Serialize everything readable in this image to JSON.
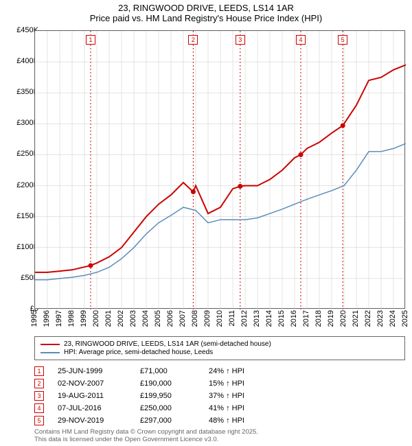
{
  "title": {
    "main": "23, RINGWOOD DRIVE, LEEDS, LS14 1AR",
    "sub": "Price paid vs. HM Land Registry's House Price Index (HPI)"
  },
  "chart": {
    "type": "line",
    "background_color": "#ffffff",
    "border_color": "#666666",
    "grid_color": "#c8c8c8",
    "ylim": [
      0,
      450000
    ],
    "ytick_step": 50000,
    "y_labels": [
      "£0",
      "£50K",
      "£100K",
      "£150K",
      "£200K",
      "£250K",
      "£300K",
      "£350K",
      "£400K",
      "£450K"
    ],
    "xlim": [
      1995,
      2025
    ],
    "x_labels": [
      "1995",
      "1996",
      "1997",
      "1998",
      "1999",
      "2000",
      "2001",
      "2002",
      "2003",
      "2004",
      "2005",
      "2006",
      "2007",
      "2008",
      "2009",
      "2010",
      "2011",
      "2012",
      "2013",
      "2014",
      "2015",
      "2016",
      "2017",
      "2018",
      "2019",
      "2020",
      "2021",
      "2022",
      "2023",
      "2024",
      "2025"
    ],
    "axis_fontsize": 11,
    "series": [
      {
        "name": "23, RINGWOOD DRIVE, LEEDS, LS14 1AR (semi-detached house)",
        "color": "#cc0000",
        "line_width": 2,
        "data": [
          [
            1995,
            60
          ],
          [
            1996,
            60
          ],
          [
            1997,
            62
          ],
          [
            1998,
            64
          ],
          [
            1999.5,
            71
          ],
          [
            2000,
            75
          ],
          [
            2001,
            85
          ],
          [
            2002,
            100
          ],
          [
            2003,
            125
          ],
          [
            2004,
            150
          ],
          [
            2005,
            170
          ],
          [
            2006,
            185
          ],
          [
            2007,
            205
          ],
          [
            2007.8,
            190
          ],
          [
            2008,
            200
          ],
          [
            2009,
            155
          ],
          [
            2010,
            165
          ],
          [
            2011,
            195
          ],
          [
            2011.6,
            199
          ],
          [
            2012,
            200
          ],
          [
            2013,
            200
          ],
          [
            2014,
            210
          ],
          [
            2015,
            225
          ],
          [
            2016,
            245
          ],
          [
            2016.5,
            250
          ],
          [
            2017,
            260
          ],
          [
            2018,
            270
          ],
          [
            2019,
            285
          ],
          [
            2019.9,
            297
          ],
          [
            2020,
            300
          ],
          [
            2021,
            330
          ],
          [
            2022,
            370
          ],
          [
            2023,
            375
          ],
          [
            2024,
            387
          ],
          [
            2025,
            395
          ]
        ]
      },
      {
        "name": "HPI: Average price, semi-detached house, Leeds",
        "color": "#5b8db8",
        "line_width": 1.5,
        "data": [
          [
            1995,
            48
          ],
          [
            1996,
            48
          ],
          [
            1997,
            50
          ],
          [
            1998,
            52
          ],
          [
            1999,
            55
          ],
          [
            2000,
            60
          ],
          [
            2001,
            68
          ],
          [
            2002,
            82
          ],
          [
            2003,
            100
          ],
          [
            2004,
            122
          ],
          [
            2005,
            140
          ],
          [
            2006,
            152
          ],
          [
            2007,
            165
          ],
          [
            2008,
            160
          ],
          [
            2009,
            140
          ],
          [
            2010,
            145
          ],
          [
            2011,
            145
          ],
          [
            2012,
            145
          ],
          [
            2013,
            148
          ],
          [
            2014,
            155
          ],
          [
            2015,
            162
          ],
          [
            2016,
            170
          ],
          [
            2017,
            178
          ],
          [
            2018,
            185
          ],
          [
            2019,
            192
          ],
          [
            2020,
            200
          ],
          [
            2021,
            225
          ],
          [
            2022,
            255
          ],
          [
            2023,
            255
          ],
          [
            2024,
            260
          ],
          [
            2025,
            268
          ]
        ]
      }
    ],
    "transaction_markers": [
      {
        "num": "1",
        "x": 1999.5,
        "y": 71,
        "color": "#cc0000",
        "vline_color": "#cc0000"
      },
      {
        "num": "2",
        "x": 2007.8,
        "y": 190,
        "color": "#cc0000",
        "vline_color": "#cc0000"
      },
      {
        "num": "3",
        "x": 2011.6,
        "y": 199,
        "color": "#cc0000",
        "vline_color": "#cc0000"
      },
      {
        "num": "4",
        "x": 2016.5,
        "y": 250,
        "color": "#cc0000",
        "vline_color": "#cc0000"
      },
      {
        "num": "5",
        "x": 2019.9,
        "y": 297,
        "color": "#cc0000",
        "vline_color": "#cc0000"
      }
    ]
  },
  "legend": {
    "items": [
      {
        "color": "#cc0000",
        "label": "23, RINGWOOD DRIVE, LEEDS, LS14 1AR (semi-detached house)"
      },
      {
        "color": "#5b8db8",
        "label": "HPI: Average price, semi-detached house, Leeds"
      }
    ]
  },
  "transactions": [
    {
      "num": "1",
      "color": "#cc0000",
      "date": "25-JUN-1999",
      "price": "£71,000",
      "pct": "24% ↑ HPI"
    },
    {
      "num": "2",
      "color": "#cc0000",
      "date": "02-NOV-2007",
      "price": "£190,000",
      "pct": "15% ↑ HPI"
    },
    {
      "num": "3",
      "color": "#cc0000",
      "date": "19-AUG-2011",
      "price": "£199,950",
      "pct": "37% ↑ HPI"
    },
    {
      "num": "4",
      "color": "#cc0000",
      "date": "07-JUL-2016",
      "price": "£250,000",
      "pct": "41% ↑ HPI"
    },
    {
      "num": "5",
      "color": "#cc0000",
      "date": "29-NOV-2019",
      "price": "£297,000",
      "pct": "48% ↑ HPI"
    }
  ],
  "footnote": {
    "line1": "Contains HM Land Registry data © Crown copyright and database right 2025.",
    "line2": "This data is licensed under the Open Government Licence v3.0."
  }
}
